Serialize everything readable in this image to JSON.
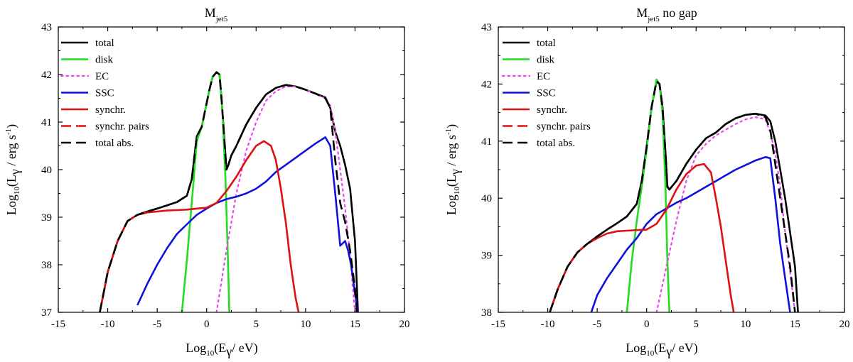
{
  "chart_data": [
    {
      "type": "line",
      "title": "M",
      "title_sub": "jet5",
      "title_suffix": "",
      "xlabel": {
        "pre": "Log",
        "sub1": "10",
        "mid": "(E",
        "sub2": "γ",
        "post": "/ eV)"
      },
      "ylabel": {
        "pre": "Log",
        "sub1": "10",
        "mid": "(L",
        "sub2": "γ",
        "post": " / erg s",
        "sup": "-1",
        "end": ")"
      },
      "xlim": [
        -15,
        20
      ],
      "ylim": [
        37,
        43
      ],
      "xticks": [
        -15,
        -10,
        -5,
        0,
        5,
        10,
        15,
        20
      ],
      "yticks": [
        37,
        38,
        39,
        40,
        41,
        42,
        43
      ],
      "grid": false,
      "legend_position": "top-left",
      "series": [
        {
          "name": "total",
          "color": "#000000",
          "style": "solid",
          "x": [
            -10.8,
            -10,
            -9,
            -8,
            -7,
            -6,
            -5,
            -4,
            -3,
            -2,
            -1.5,
            -1,
            -0.5,
            0,
            0.3,
            0.6,
            1,
            1.3,
            1.5,
            1.8,
            2.0,
            2.2,
            2.5,
            3,
            4,
            5,
            6,
            7,
            8,
            9,
            10,
            11,
            12,
            12.5,
            13,
            13.5,
            14,
            14.5,
            15,
            15.3
          ],
          "y": [
            37.0,
            37.85,
            38.5,
            38.92,
            39.05,
            39.12,
            39.18,
            39.25,
            39.32,
            39.45,
            39.8,
            40.7,
            40.9,
            41.4,
            41.7,
            41.95,
            42.05,
            42.0,
            41.5,
            40.6,
            40.0,
            40.1,
            40.3,
            40.5,
            40.95,
            41.3,
            41.58,
            41.72,
            41.78,
            41.75,
            41.68,
            41.6,
            41.52,
            41.3,
            40.8,
            40.5,
            40.1,
            39.6,
            38.5,
            37.0
          ]
        },
        {
          "name": "disk",
          "color": "#22dd22",
          "style": "solid",
          "x": [
            -2.5,
            -2,
            -1.5,
            -1,
            -0.5,
            0,
            0.3,
            0.6,
            1,
            1.3,
            1.6,
            1.9,
            2.1,
            2.3
          ],
          "y": [
            37.0,
            38.1,
            39.3,
            40.6,
            40.9,
            41.4,
            41.7,
            41.95,
            42.05,
            42.0,
            41.2,
            39.8,
            38.5,
            37.0
          ]
        },
        {
          "name": "EC",
          "color": "#ee44ee",
          "style": "dotted",
          "x": [
            1,
            2,
            3,
            4,
            5,
            6,
            7,
            8,
            9,
            10,
            11,
            12,
            12.5,
            13,
            13.5,
            14,
            14.5,
            15
          ],
          "y": [
            37.0,
            38.3,
            39.5,
            40.4,
            41.0,
            41.45,
            41.65,
            41.75,
            41.75,
            41.68,
            41.6,
            41.5,
            41.35,
            40.8,
            40.0,
            39.2,
            38.2,
            37.0
          ]
        },
        {
          "name": "SSC",
          "color": "#1111dd",
          "style": "solid",
          "x": [
            -7,
            -6,
            -5,
            -4,
            -3,
            -2,
            -1,
            0,
            1,
            2,
            3,
            4,
            5,
            6,
            7,
            8,
            9,
            10,
            11,
            12,
            12.5,
            13,
            13.5,
            14,
            14.3,
            14.6,
            15,
            15.3
          ],
          "y": [
            37.15,
            37.6,
            38.0,
            38.35,
            38.65,
            38.85,
            39.05,
            39.18,
            39.3,
            39.38,
            39.43,
            39.5,
            39.6,
            39.75,
            39.95,
            40.1,
            40.25,
            40.4,
            40.55,
            40.68,
            40.5,
            39.5,
            38.4,
            38.5,
            38.3,
            38.0,
            37.4,
            37.0
          ]
        },
        {
          "name": "synchr.",
          "color": "#dd1111",
          "style": "solid",
          "x": [
            -10.8,
            -10,
            -9,
            -8,
            -7,
            -6,
            -5,
            -4,
            -3,
            -2,
            -1,
            0,
            1,
            2,
            3,
            4,
            5,
            5.8,
            6.5,
            7,
            7.5,
            8,
            8.5,
            9,
            9.3
          ],
          "y": [
            37.0,
            37.85,
            38.5,
            38.92,
            39.05,
            39.1,
            39.12,
            39.14,
            39.15,
            39.16,
            39.18,
            39.2,
            39.3,
            39.55,
            39.85,
            40.2,
            40.5,
            40.6,
            40.5,
            40.2,
            39.6,
            38.9,
            38.0,
            37.3,
            37.0
          ]
        },
        {
          "name": "synchr. pairs",
          "color": "#dd1111",
          "style": "dashed",
          "x": [],
          "y": []
        },
        {
          "name": "total abs.",
          "color": "#000000",
          "style": "dashed",
          "x": [
            -10.8,
            -10,
            -9,
            -8,
            -7,
            -6,
            -5,
            -4,
            -3,
            -2,
            -1.5,
            -1,
            -0.5,
            0,
            0.3,
            0.6,
            1,
            1.3,
            1.5,
            1.8,
            2.0,
            2.2,
            2.5,
            3,
            4,
            5,
            6,
            7,
            8,
            9,
            10,
            11,
            12,
            12.5,
            13,
            13.5,
            14,
            14.5,
            15,
            15.2
          ],
          "y": [
            37.0,
            37.85,
            38.5,
            38.92,
            39.05,
            39.12,
            39.18,
            39.25,
            39.32,
            39.45,
            39.8,
            40.7,
            40.9,
            41.4,
            41.7,
            41.95,
            42.05,
            42.0,
            41.5,
            40.6,
            40.0,
            40.1,
            40.3,
            40.5,
            40.95,
            41.3,
            41.58,
            41.72,
            41.78,
            41.75,
            41.68,
            41.6,
            41.5,
            41.3,
            40.2,
            39.3,
            38.9,
            38.3,
            37.5,
            37.0
          ]
        }
      ]
    },
    {
      "type": "line",
      "title": "M",
      "title_sub": "jet5",
      "title_suffix": " no gap",
      "xlabel": {
        "pre": "Log",
        "sub1": "10",
        "mid": "(E",
        "sub2": "γ",
        "post": "/ eV)"
      },
      "ylabel": {
        "pre": "Log",
        "sub1": "10",
        "mid": "(L",
        "sub2": "γ",
        "post": " / erg s",
        "sup": "-1",
        "end": ")"
      },
      "xlim": [
        -15,
        20
      ],
      "ylim": [
        38,
        43
      ],
      "xticks": [
        -15,
        -10,
        -5,
        0,
        5,
        10,
        15,
        20
      ],
      "yticks": [
        38,
        39,
        40,
        41,
        42,
        43
      ],
      "grid": false,
      "legend_position": "top-left",
      "series": [
        {
          "name": "total",
          "color": "#000000",
          "style": "solid",
          "x": [
            -9.8,
            -9,
            -8,
            -7,
            -6,
            -5,
            -4,
            -3,
            -2,
            -1,
            -0.5,
            0,
            0.5,
            1,
            1.3,
            1.6,
            1.9,
            2.1,
            2.3,
            3,
            4,
            5,
            6,
            7,
            8,
            9,
            10,
            11,
            12,
            12.5,
            13,
            13.5,
            14,
            14.5,
            15,
            15.3
          ],
          "y": [
            38.0,
            38.4,
            38.8,
            39.05,
            39.2,
            39.33,
            39.45,
            39.56,
            39.68,
            39.9,
            40.3,
            40.9,
            41.6,
            42.05,
            42.0,
            41.6,
            40.8,
            40.2,
            40.15,
            40.3,
            40.6,
            40.85,
            41.05,
            41.15,
            41.3,
            41.4,
            41.46,
            41.48,
            41.45,
            41.35,
            41.0,
            40.5,
            40.0,
            39.4,
            38.8,
            38.0
          ]
        },
        {
          "name": "disk",
          "color": "#22dd22",
          "style": "solid",
          "x": [
            -2.0,
            -1.5,
            -1,
            -0.5,
            0,
            0.5,
            1,
            1.3,
            1.6,
            1.9,
            2.1,
            2.3
          ],
          "y": [
            38.0,
            38.9,
            39.6,
            40.2,
            40.85,
            41.6,
            42.08,
            42.0,
            41.5,
            40.2,
            38.9,
            38.0
          ]
        },
        {
          "name": "EC",
          "color": "#ee44ee",
          "style": "dotted",
          "x": [
            1,
            2,
            3,
            4,
            5,
            6,
            7,
            8,
            9,
            10,
            11,
            12,
            12.5,
            13,
            13.5,
            14,
            14.5,
            15
          ],
          "y": [
            38.0,
            38.8,
            39.6,
            40.3,
            40.75,
            40.95,
            41.1,
            41.2,
            41.3,
            41.38,
            41.42,
            41.38,
            41.15,
            40.8,
            40.2,
            39.4,
            38.7,
            38.0
          ]
        },
        {
          "name": "SSC",
          "color": "#1111dd",
          "style": "solid",
          "x": [
            -5.6,
            -5,
            -4,
            -3,
            -2,
            -1,
            0,
            1,
            2,
            3,
            4,
            5,
            6,
            7,
            8,
            9,
            10,
            11,
            12,
            12.5,
            13,
            13.5,
            14,
            14.5
          ],
          "y": [
            38.0,
            38.3,
            38.6,
            38.85,
            39.1,
            39.3,
            39.55,
            39.72,
            39.82,
            39.92,
            40.0,
            40.1,
            40.2,
            40.3,
            40.4,
            40.5,
            40.58,
            40.66,
            40.72,
            40.7,
            40.0,
            39.2,
            38.6,
            38.0
          ]
        },
        {
          "name": "synchr.",
          "color": "#dd1111",
          "style": "solid",
          "x": [
            -9.8,
            -9,
            -8,
            -7,
            -6,
            -5,
            -4,
            -3,
            -2,
            -1,
            0,
            1,
            2,
            3,
            4,
            5,
            5.8,
            6.5,
            7,
            7.5,
            8,
            8.5,
            8.8
          ],
          "y": [
            38.0,
            38.4,
            38.8,
            39.05,
            39.2,
            39.3,
            39.38,
            39.42,
            39.43,
            39.44,
            39.45,
            39.55,
            39.8,
            40.15,
            40.42,
            40.57,
            40.6,
            40.45,
            40.0,
            39.5,
            38.9,
            38.3,
            38.0
          ]
        },
        {
          "name": "synchr. pairs",
          "color": "#dd1111",
          "style": "dashed",
          "x": [],
          "y": []
        },
        {
          "name": "total abs.",
          "color": "#000000",
          "style": "dashed",
          "x": [
            -9.8,
            -9,
            -8,
            -7,
            -6,
            -5,
            -4,
            -3,
            -2,
            -1,
            -0.5,
            0,
            0.5,
            1,
            1.3,
            1.6,
            1.9,
            2.1,
            2.3,
            3,
            4,
            5,
            6,
            7,
            8,
            9,
            10,
            11,
            12,
            12.5,
            13,
            13.5,
            14,
            14.5,
            15
          ],
          "y": [
            38.0,
            38.4,
            38.8,
            39.05,
            39.2,
            39.33,
            39.45,
            39.56,
            39.68,
            39.9,
            40.3,
            40.9,
            41.6,
            42.05,
            42.0,
            41.6,
            40.8,
            40.2,
            40.15,
            40.3,
            40.6,
            40.85,
            41.05,
            41.15,
            41.3,
            41.4,
            41.46,
            41.48,
            41.42,
            41.2,
            40.6,
            40.0,
            39.4,
            38.8,
            38.0
          ]
        }
      ]
    }
  ]
}
